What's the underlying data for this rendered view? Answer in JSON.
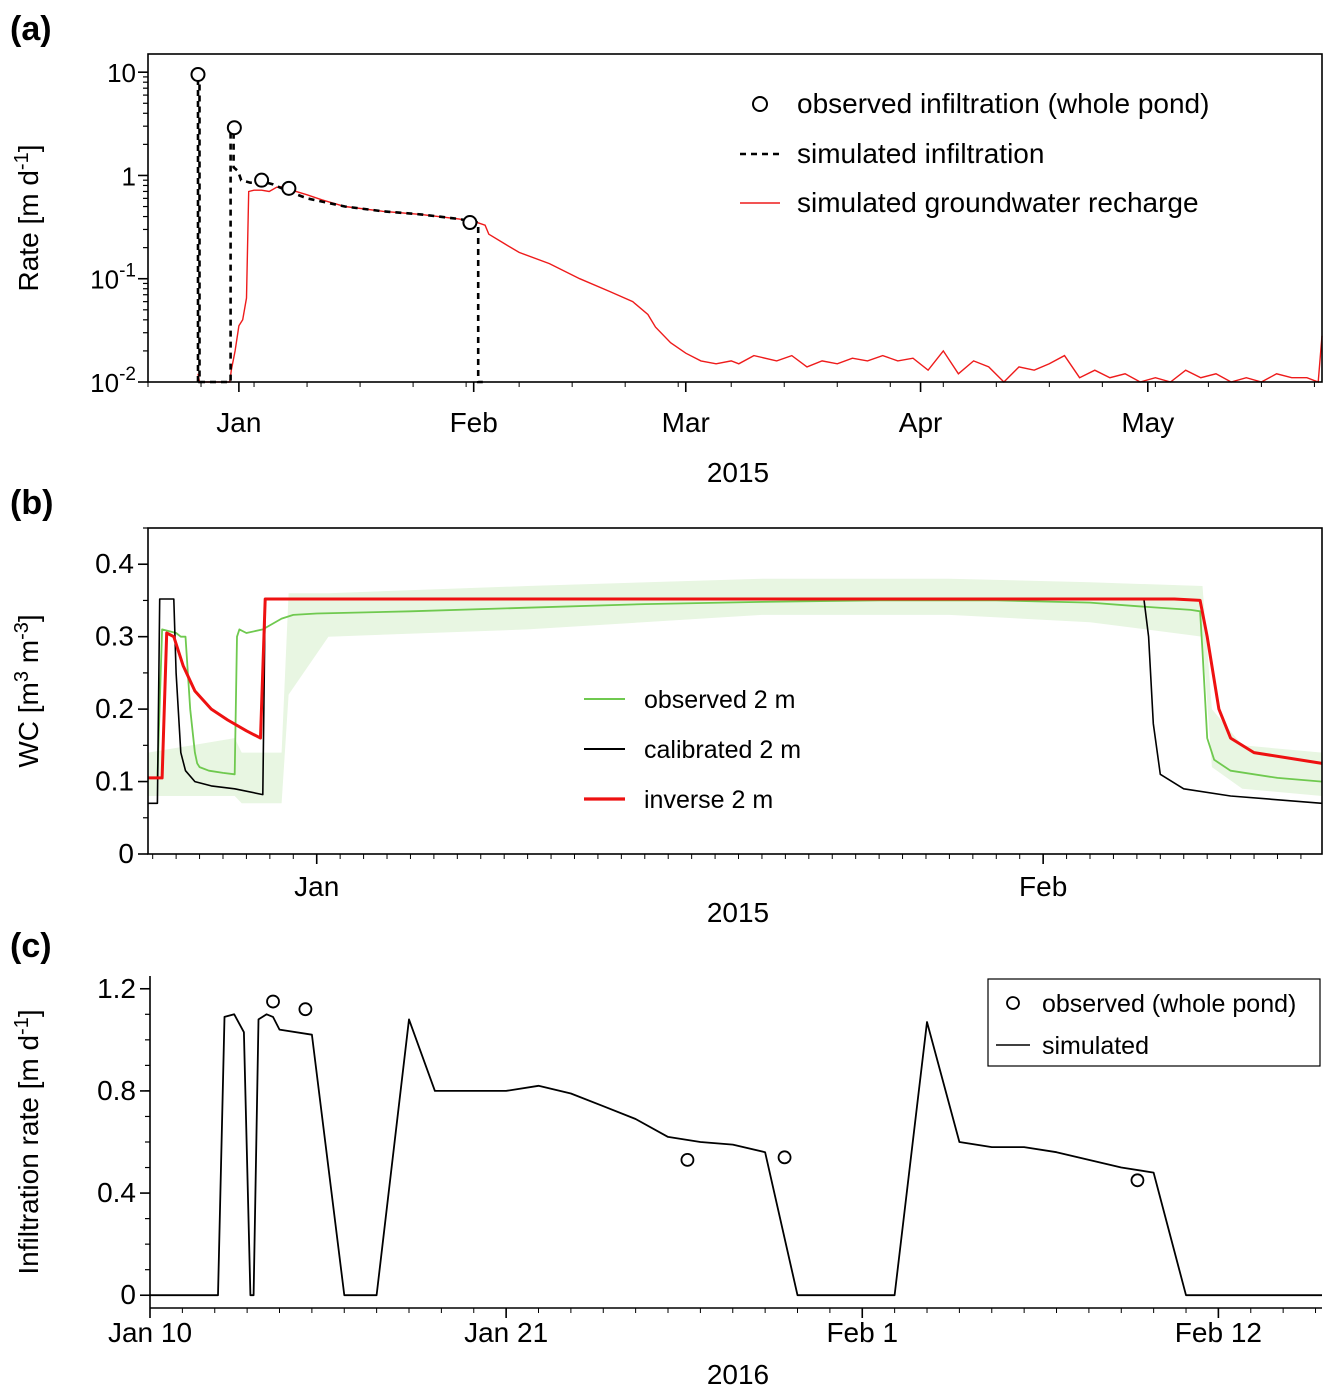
{
  "chart_data": [
    {
      "panel": "(a)",
      "type": "line",
      "ylabel": "Rate [m d-1]",
      "yscale": "log",
      "ylim": [
        0.01,
        15
      ],
      "yticks": [
        "10-2",
        "10-1",
        "1",
        "10"
      ],
      "xlabel": "2015",
      "xticks": [
        {
          "label": "Jan",
          "day": 1
        },
        {
          "label": "Feb",
          "day": 32
        },
        {
          "label": "Mar",
          "day": 60
        },
        {
          "label": "Apr",
          "day": 91
        },
        {
          "label": "May",
          "day": 121
        }
      ],
      "xlim": [
        -11,
        144
      ],
      "x_units": "day of 2015 (Dec 21 2014 = -11)",
      "legend_position": "top-right",
      "series": [
        {
          "name": "observed infiltration (whole pond)",
          "style": "circle",
          "color": "#000000",
          "x": [
            -4.4,
            0.4,
            4.0,
            7.6,
            31.5
          ],
          "y": [
            9.5,
            2.9,
            0.9,
            0.75,
            0.35
          ]
        },
        {
          "name": "simulated infiltration",
          "style": "dashed",
          "color": "#000000",
          "x": [
            -4.4,
            -4.4,
            -4.2,
            -4.2,
            -0.1,
            -0.1,
            0.3,
            0.3,
            0.9,
            1.3,
            2.5,
            4.0,
            5.5,
            7.6,
            10,
            15,
            20,
            25,
            30,
            32.6,
            32.6,
            33.2
          ],
          "y": [
            0.01,
            9.5,
            9.5,
            0.01,
            0.01,
            3.0,
            3.0,
            1.2,
            1.1,
            0.9,
            0.85,
            0.88,
            0.82,
            0.7,
            0.6,
            0.5,
            0.45,
            0.42,
            0.38,
            0.35,
            0.01,
            0.01
          ]
        },
        {
          "name": "simulated groundwater recharge",
          "style": "solid",
          "color": "#ee1b1b",
          "x": [
            -4.4,
            -4.2,
            -4.0,
            -0.2,
            0.0,
            0.5,
            1.0,
            1.5,
            2.0,
            2.3,
            3.0,
            4.0,
            5.0,
            6.0,
            7.0,
            8.0,
            10,
            12,
            15,
            20,
            25,
            30,
            32,
            33.5,
            34.0,
            36,
            38,
            42,
            46,
            50,
            53,
            55,
            56,
            58,
            60,
            62,
            64,
            66,
            67,
            69,
            72,
            74,
            76,
            78,
            80,
            82,
            84,
            86,
            88,
            90,
            92,
            94,
            96,
            98,
            100,
            102,
            104,
            106,
            108,
            110,
            112,
            114,
            116,
            118,
            120,
            122,
            124,
            126,
            128,
            130,
            132,
            134,
            136,
            138,
            140,
            142,
            143.5,
            144
          ],
          "y": [
            0.012,
            0.01,
            0.01,
            0.01,
            0.013,
            0.02,
            0.035,
            0.04,
            0.065,
            0.7,
            0.72,
            0.72,
            0.7,
            0.77,
            0.78,
            0.72,
            0.65,
            0.58,
            0.5,
            0.45,
            0.42,
            0.38,
            0.36,
            0.33,
            0.27,
            0.22,
            0.18,
            0.14,
            0.1,
            0.075,
            0.06,
            0.045,
            0.034,
            0.024,
            0.019,
            0.016,
            0.015,
            0.016,
            0.015,
            0.018,
            0.016,
            0.018,
            0.014,
            0.016,
            0.015,
            0.017,
            0.016,
            0.018,
            0.016,
            0.017,
            0.013,
            0.02,
            0.012,
            0.016,
            0.014,
            0.01,
            0.014,
            0.013,
            0.015,
            0.018,
            0.011,
            0.013,
            0.011,
            0.012,
            0.01,
            0.011,
            0.01,
            0.013,
            0.011,
            0.012,
            0.01,
            0.011,
            0.01,
            0.012,
            0.011,
            0.011,
            0.01,
            0.028
          ]
        }
      ]
    },
    {
      "panel": "(b)",
      "type": "line",
      "ylabel": "WC [m3 m-3]",
      "ylim": [
        0,
        0.45
      ],
      "yticks": [
        "0",
        "0.1",
        "0.2",
        "0.3",
        "0.4"
      ],
      "xlabel": "2015",
      "xticks": [
        {
          "label": "Jan",
          "day": 1
        },
        {
          "label": "Feb",
          "day": 32
        }
      ],
      "xlim": [
        -6.2,
        43.9
      ],
      "x_units": "day of 2015",
      "legend_position": "center",
      "band": {
        "name": "observed 2 m uncertainty",
        "color": "#e8f6e2",
        "x": [
          -6.2,
          -2.5,
          -2.2,
          -0.5,
          -0.2,
          1.5,
          10,
          20,
          28,
          34,
          38.8,
          39.2,
          40.5,
          43.9
        ],
        "y_low": [
          0.08,
          0.08,
          0.07,
          0.07,
          0.22,
          0.3,
          0.31,
          0.33,
          0.33,
          0.32,
          0.3,
          0.12,
          0.09,
          0.08
        ],
        "y_high": [
          0.14,
          0.16,
          0.14,
          0.14,
          0.36,
          0.36,
          0.37,
          0.38,
          0.38,
          0.375,
          0.37,
          0.2,
          0.15,
          0.14
        ]
      },
      "series": [
        {
          "name": "observed 2 m",
          "color": "#6fc94f",
          "x": [
            -6.2,
            -5.8,
            -5.6,
            -5.0,
            -4.8,
            -4.6,
            -4.4,
            -4.2,
            -4.1,
            -4.0,
            -3.6,
            -3.0,
            -2.5,
            -2.4,
            -2.3,
            -2.0,
            -1.3,
            -0.5,
            0.0,
            1.0,
            5,
            10,
            15,
            20,
            25,
            30,
            34,
            36,
            38.3,
            38.7,
            38.8,
            39.0,
            39.3,
            40,
            42,
            43.9
          ],
          "y": [
            0.105,
            0.105,
            0.31,
            0.305,
            0.3,
            0.3,
            0.2,
            0.14,
            0.125,
            0.12,
            0.115,
            0.112,
            0.11,
            0.3,
            0.31,
            0.305,
            0.31,
            0.325,
            0.33,
            0.332,
            0.335,
            0.34,
            0.345,
            0.348,
            0.35,
            0.35,
            0.347,
            0.342,
            0.337,
            0.335,
            0.28,
            0.16,
            0.13,
            0.115,
            0.105,
            0.1
          ]
        },
        {
          "name": "calibrated 2 m",
          "color": "#000000",
          "x": [
            -6.2,
            -5.8,
            -5.7,
            -5.1,
            -5.0,
            -4.8,
            -4.6,
            -4.2,
            -3.5,
            -2.5,
            -1.3,
            -1.2,
            36.3,
            36.5,
            36.7,
            37.0,
            38,
            40,
            43.9
          ],
          "y": [
            0.07,
            0.07,
            0.352,
            0.352,
            0.25,
            0.14,
            0.115,
            0.1,
            0.094,
            0.09,
            0.082,
            0.352,
            0.352,
            0.3,
            0.18,
            0.11,
            0.09,
            0.08,
            0.07
          ]
        },
        {
          "name": "inverse 2 m",
          "color": "#ee1111",
          "x": [
            -6.2,
            -5.6,
            -5.4,
            -5.1,
            -4.7,
            -4.2,
            -3.5,
            -2.8,
            -2.0,
            -1.4,
            -1.2,
            37.6,
            38.7,
            39.0,
            39.5,
            40.0,
            41.0,
            43.9
          ],
          "y": [
            0.105,
            0.105,
            0.305,
            0.3,
            0.26,
            0.225,
            0.2,
            0.185,
            0.17,
            0.16,
            0.352,
            0.352,
            0.35,
            0.3,
            0.2,
            0.16,
            0.14,
            0.125
          ]
        }
      ]
    },
    {
      "panel": "(c)",
      "type": "line",
      "ylabel": "Infiltration rate [m d-1]",
      "ylim": [
        -0.05,
        1.25
      ],
      "yticks": [
        "0",
        "0.4",
        "0.8",
        "1.2"
      ],
      "xlabel": "2016",
      "xticks": [
        {
          "label": "Jan 10",
          "day": 0
        },
        {
          "label": "Jan 21",
          "day": 11
        },
        {
          "label": "Feb 1",
          "day": 22
        },
        {
          "label": "Feb 12",
          "day": 33
        }
      ],
      "xlim": [
        0,
        36.2
      ],
      "x_units": "days since Jan 10 2016",
      "legend_position": "top-right",
      "series": [
        {
          "name": "observed (whole pond)",
          "style": "circle",
          "color": "#000000",
          "x": [
            3.8,
            4.8,
            16.6,
            19.6,
            30.5
          ],
          "y": [
            1.15,
            1.12,
            0.53,
            0.54,
            0.45
          ]
        },
        {
          "name": "simulated",
          "style": "solid",
          "color": "#000000",
          "x": [
            0,
            2.1,
            2.3,
            2.6,
            2.9,
            3.1,
            3.2,
            3.35,
            3.6,
            3.8,
            4.0,
            5.0,
            6.0,
            7.0,
            8.0,
            8.8,
            9.0,
            11.0,
            12.0,
            13.0,
            14.0,
            15.0,
            16.0,
            17.0,
            18.0,
            19.0,
            20.0,
            21.0,
            22.0,
            23.0,
            24.0,
            25.0,
            26.0,
            27.0,
            28.0,
            29.0,
            30.0,
            31.0,
            32.0,
            36.2
          ],
          "y": [
            0,
            0,
            1.09,
            1.1,
            1.03,
            0,
            0,
            1.08,
            1.1,
            1.09,
            1.04,
            1.02,
            0,
            0,
            1.08,
            0.8,
            0.8,
            0.8,
            0.82,
            0.79,
            0.74,
            0.69,
            0.62,
            0.6,
            0.59,
            0.56,
            0,
            0,
            0,
            0,
            1.07,
            0.6,
            0.58,
            0.58,
            0.56,
            0.53,
            0.5,
            0.48,
            0,
            0
          ]
        }
      ]
    }
  ]
}
